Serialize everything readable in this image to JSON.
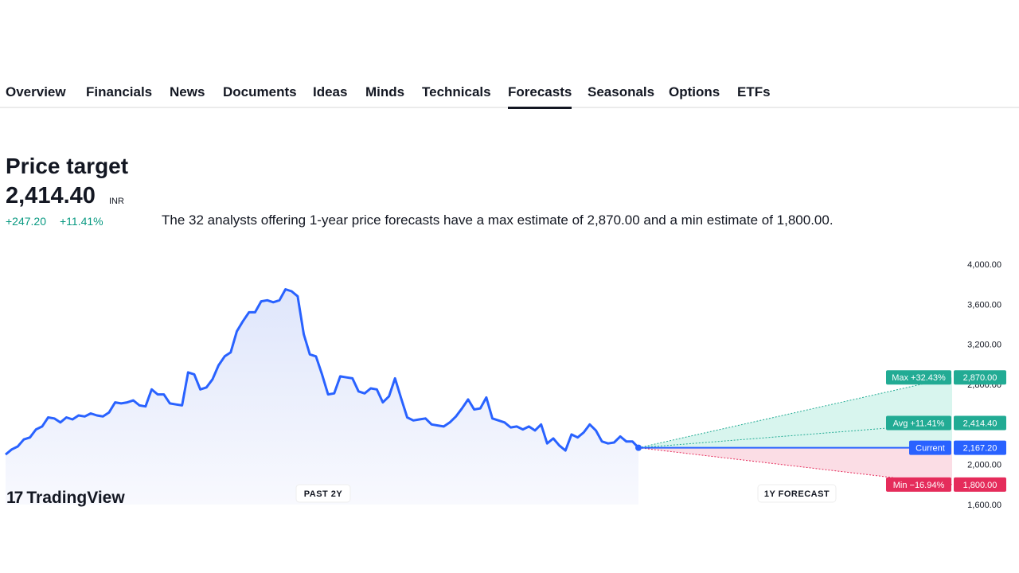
{
  "tabs": [
    {
      "label": "Overview",
      "active": false
    },
    {
      "label": "Financials",
      "active": false
    },
    {
      "label": "News",
      "active": false
    },
    {
      "label": "Documents",
      "active": false
    },
    {
      "label": "Ideas",
      "active": false
    },
    {
      "label": "Minds",
      "active": false
    },
    {
      "label": "Technicals",
      "active": false
    },
    {
      "label": "Forecasts",
      "active": true
    },
    {
      "label": "Seasonals",
      "active": false
    },
    {
      "label": "Options",
      "active": false
    },
    {
      "label": "ETFs",
      "active": false
    }
  ],
  "summary": {
    "title": "Price target",
    "price": "2,414.40",
    "currency": "INR",
    "change_abs": "+247.20",
    "change_pct": "+11.41%",
    "description": "The 32 analysts offering 1-year price forecasts have a max estimate of 2,870.00 and a min estimate of 1,800.00."
  },
  "logo": {
    "mark": "17",
    "text": "TradingView"
  },
  "chart_data": {
    "type": "line",
    "yticks": [
      "4,000.00",
      "3,600.00",
      "3,200.00",
      "2,800.00",
      "2,400.00",
      "2,000.00",
      "1,600.00"
    ],
    "ytick_values": [
      4000,
      3600,
      3200,
      2800,
      2400,
      2000,
      1600
    ],
    "ylim": [
      1600,
      4000
    ],
    "period_labels": {
      "past": "PAST 2Y",
      "forecast": "1Y FORECAST"
    },
    "history": [
      2100,
      2150,
      2180,
      2250,
      2270,
      2350,
      2380,
      2470,
      2460,
      2420,
      2470,
      2450,
      2490,
      2480,
      2510,
      2490,
      2480,
      2520,
      2620,
      2610,
      2620,
      2640,
      2590,
      2580,
      2750,
      2700,
      2700,
      2610,
      2600,
      2590,
      2920,
      2900,
      2750,
      2770,
      2850,
      2990,
      3080,
      3120,
      3330,
      3430,
      3520,
      3520,
      3630,
      3640,
      3620,
      3640,
      3750,
      3730,
      3680,
      3300,
      3100,
      3080,
      2900,
      2700,
      2710,
      2880,
      2870,
      2860,
      2730,
      2710,
      2760,
      2750,
      2620,
      2680,
      2860,
      2660,
      2470,
      2440,
      2450,
      2460,
      2400,
      2390,
      2380,
      2420,
      2480,
      2560,
      2650,
      2550,
      2560,
      2670,
      2460,
      2440,
      2420,
      2370,
      2380,
      2350,
      2380,
      2340,
      2400,
      2210,
      2260,
      2190,
      2140,
      2300,
      2270,
      2320,
      2400,
      2340,
      2230,
      2210,
      2220,
      2280,
      2230,
      2230,
      2167.2
    ],
    "current": {
      "label": "Current",
      "value": 2167.2,
      "text": "2,167.20",
      "color": "#2962ff"
    },
    "forecasts": [
      {
        "label": "Max +32.43%",
        "value": 2870.0,
        "text": "2,870.00",
        "color": "#22ab94"
      },
      {
        "label": "Avg +11.41%",
        "value": 2414.4,
        "text": "2,414.40",
        "color": "#22ab94"
      },
      {
        "label": "Min −16.94%",
        "value": 1800.0,
        "text": "1,800.00",
        "color": "#e52c5b"
      }
    ],
    "colors": {
      "line": "#2962ff",
      "area_fill": "#e9eefc",
      "forecast_up": "#d8f5ee",
      "forecast_down": "#fbdde5"
    }
  }
}
